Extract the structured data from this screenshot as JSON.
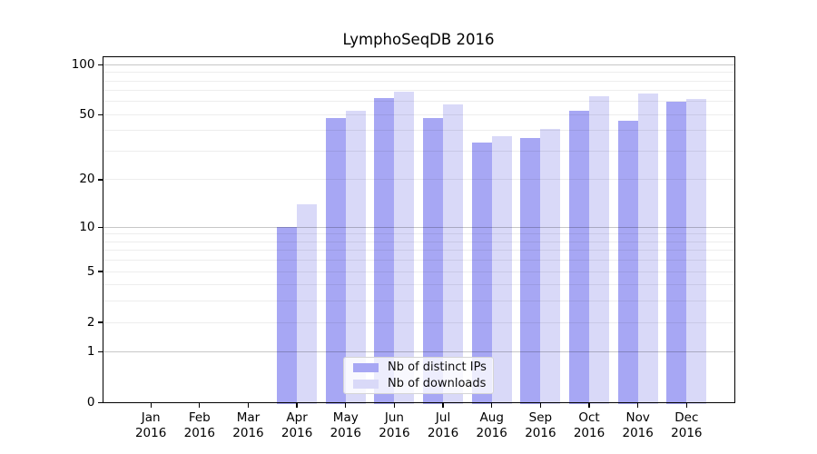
{
  "chart_data": {
    "type": "bar",
    "title": "LymphoSeqDB 2016",
    "categories": [
      "Jan",
      "Feb",
      "Mar",
      "Apr",
      "May",
      "Jun",
      "Jul",
      "Aug",
      "Sep",
      "Oct",
      "Nov",
      "Dec"
    ],
    "category_year": "2016",
    "series": [
      {
        "name": "Nb of distinct IPs",
        "color": "#a7a7f4",
        "values": [
          0,
          0,
          0,
          10,
          48,
          63,
          48,
          34,
          36,
          53,
          46,
          60
        ]
      },
      {
        "name": "Nb of downloads",
        "color": "#d9d9f8",
        "values": [
          0,
          0,
          0,
          14,
          53,
          69,
          58,
          37,
          41,
          65,
          67,
          62
        ]
      }
    ],
    "y_scale": "log10(1+x)",
    "ylim": [
      0,
      113
    ],
    "y_tick_values": [
      100,
      50,
      20,
      10,
      5,
      2,
      1,
      0
    ],
    "y_tick_labels": [
      "100",
      "50",
      "20",
      "10",
      "5",
      "2",
      "1",
      "0"
    ],
    "y_major_gridlines": [
      1,
      10,
      100
    ],
    "y_minor_gridlines": [
      2,
      3,
      4,
      5,
      6,
      7,
      8,
      9,
      20,
      30,
      40,
      50,
      60,
      70,
      80,
      90
    ],
    "grid": true,
    "legend_position": "lower center"
  },
  "legend": {
    "items": [
      {
        "label": "Nb of distinct IPs",
        "series": "ips"
      },
      {
        "label": "Nb of downloads",
        "series": "downloads"
      }
    ]
  },
  "colors": {
    "ips_bar": "#a7a7f4",
    "downloads_bar": "#d9d9f8",
    "grid_major": "rgba(0,0,0,0.22)",
    "grid_minor": "rgba(0,0,0,0.07)",
    "spine": "#000000",
    "background": "#ffffff"
  }
}
